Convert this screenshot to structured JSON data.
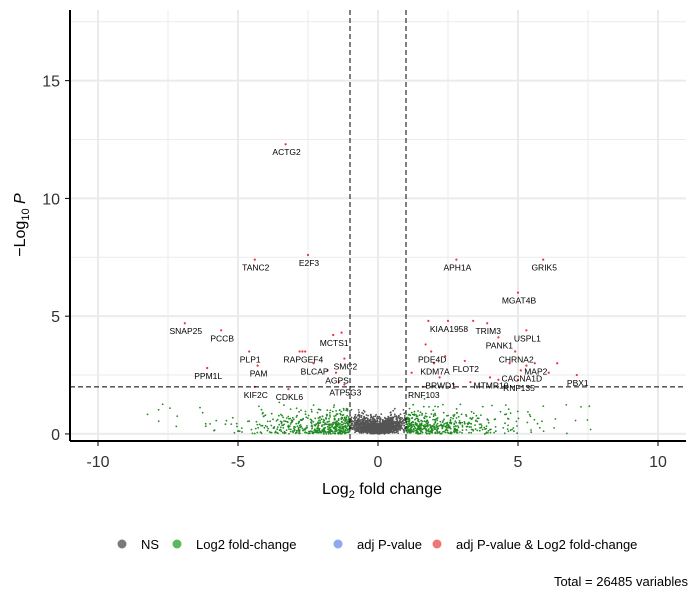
{
  "chart_data": {
    "type": "scatter",
    "title": "",
    "xlabel_base": "Log",
    "xlabel_sub": "2",
    "xlabel_rest": " fold change",
    "ylabel_pre": "−Log",
    "ylabel_sub": "10",
    "ylabel_var": " P",
    "xlim": [
      -11,
      11
    ],
    "ylim": [
      -0.3,
      18
    ],
    "xticks": [
      -10,
      -5,
      0,
      5,
      10
    ],
    "yticks": [
      0,
      5,
      10,
      15
    ],
    "xtick_labels": [
      "-10",
      "-5",
      "0",
      "5",
      "10"
    ],
    "ytick_labels": [
      "0",
      "5",
      "10",
      "15"
    ],
    "grid": true,
    "cutoffs": {
      "fc_low": -1,
      "fc_high": 1,
      "p": 2
    },
    "colors": {
      "NS": "#555555",
      "FC": "#228B22",
      "P": "#6F8FE8",
      "FC_P": "#E8333A"
    },
    "legend": {
      "position": "bottom",
      "items": [
        {
          "key": "NS",
          "label": "NS",
          "color": "#7a7a7a"
        },
        {
          "key": "FC",
          "label": "Log2 fold-change",
          "color": "#5cb85c"
        },
        {
          "key": "P",
          "label": "adj P-value",
          "color": "#8fa8ee"
        },
        {
          "key": "FC_P",
          "label": "adj P-value & Log2 fold-change",
          "color": "#e77"
        }
      ]
    },
    "caption": "Total = 26485 variables",
    "labeled_points": [
      {
        "label": "ACTG2",
        "x": -3.3,
        "y": 12.3
      },
      {
        "label": "TANC2",
        "x": -4.4,
        "y": 7.4
      },
      {
        "label": "E2F3",
        "x": -2.5,
        "y": 7.6
      },
      {
        "label": "SNAP25",
        "x": -6.9,
        "y": 4.7
      },
      {
        "label": "PCCB",
        "x": -5.6,
        "y": 4.4
      },
      {
        "label": "PLP1",
        "x": -4.6,
        "y": 3.5
      },
      {
        "label": "PAM",
        "x": -4.3,
        "y": 2.9
      },
      {
        "label": "PPM1L",
        "x": -6.1,
        "y": 2.8
      },
      {
        "label": "KIF2C",
        "x": -4.4,
        "y": 2.0
      },
      {
        "label": "CDKL6",
        "x": -3.2,
        "y": 1.9
      },
      {
        "label": "MCTS1",
        "x": -1.6,
        "y": 4.2
      },
      {
        "label": "RAPGEF4",
        "x": -2.7,
        "y": 3.5
      },
      {
        "label": "BLCAP",
        "x": -2.3,
        "y": 3.0
      },
      {
        "label": "SMC2",
        "x": -1.2,
        "y": 3.2
      },
      {
        "label": "AGPS",
        "x": -1.5,
        "y": 2.6
      },
      {
        "label": "ATP5G3",
        "x": -1.2,
        "y": 2.1
      },
      {
        "label": "APH1A",
        "x": 2.8,
        "y": 7.4
      },
      {
        "label": "GRIK5",
        "x": 5.9,
        "y": 7.4
      },
      {
        "label": "MGAT4B",
        "x": 5.0,
        "y": 6.0
      },
      {
        "label": "KIAA1958",
        "x": 2.5,
        "y": 4.8
      },
      {
        "label": "TRIM3",
        "x": 3.9,
        "y": 4.7
      },
      {
        "label": "PANK1",
        "x": 4.3,
        "y": 4.1
      },
      {
        "label": "USPL1",
        "x": 5.3,
        "y": 4.4
      },
      {
        "label": "PDE4D",
        "x": 1.9,
        "y": 3.5
      },
      {
        "label": "KDM7A",
        "x": 2.0,
        "y": 3.0
      },
      {
        "label": "FLOT2",
        "x": 3.1,
        "y": 3.1
      },
      {
        "label": "CHRNA2",
        "x": 4.9,
        "y": 3.5
      },
      {
        "label": "MAP2",
        "x": 5.6,
        "y": 3.0
      },
      {
        "label": "CACNA1D",
        "x": 5.1,
        "y": 2.7
      },
      {
        "label": "RNF135",
        "x": 5.0,
        "y": 2.3
      },
      {
        "label": "PBX1",
        "x": 7.1,
        "y": 2.5
      },
      {
        "label": "BRWD1",
        "x": 2.2,
        "y": 2.4
      },
      {
        "label": "MTMR10",
        "x": 4.0,
        "y": 2.4
      },
      {
        "label": "RNF103",
        "x": 1.6,
        "y": 2.0
      }
    ],
    "extra_sig_points": [
      {
        "x": -2.8,
        "y": 3.5
      },
      {
        "x": -2.6,
        "y": 3.5
      },
      {
        "x": -1.3,
        "y": 4.3
      },
      {
        "x": -1.8,
        "y": 2.7
      },
      {
        "x": -1.4,
        "y": 2.2
      },
      {
        "x": 1.8,
        "y": 4.8
      },
      {
        "x": 1.7,
        "y": 3.8
      },
      {
        "x": 2.4,
        "y": 3.3
      },
      {
        "x": 3.4,
        "y": 4.8
      },
      {
        "x": 4.7,
        "y": 3.0
      },
      {
        "x": 5.3,
        "y": 2.9
      },
      {
        "x": 6.4,
        "y": 3.0
      },
      {
        "x": 3.3,
        "y": 2.2
      },
      {
        "x": 4.3,
        "y": 2.3
      },
      {
        "x": 2.7,
        "y": 2.1
      },
      {
        "x": 6.1,
        "y": 2.6
      },
      {
        "x": 1.2,
        "y": 2.6
      }
    ]
  }
}
